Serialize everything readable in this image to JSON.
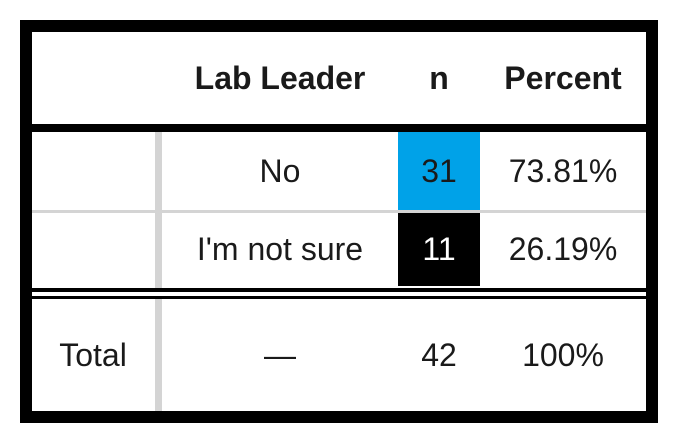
{
  "table": {
    "headers": {
      "row_label": "",
      "category": "Lab Leader",
      "n": "n",
      "percent": "Percent"
    },
    "rows": [
      {
        "label": "",
        "category": "No",
        "n": "31",
        "percent": "73.81%",
        "n_fill": "#00a2e8"
      },
      {
        "label": "",
        "category": "I'm not sure",
        "n": "11",
        "percent": "26.19%",
        "n_fill": "#000000"
      }
    ],
    "total": {
      "label": "Total",
      "category": "—",
      "n": "42",
      "percent": "100%"
    }
  }
}
